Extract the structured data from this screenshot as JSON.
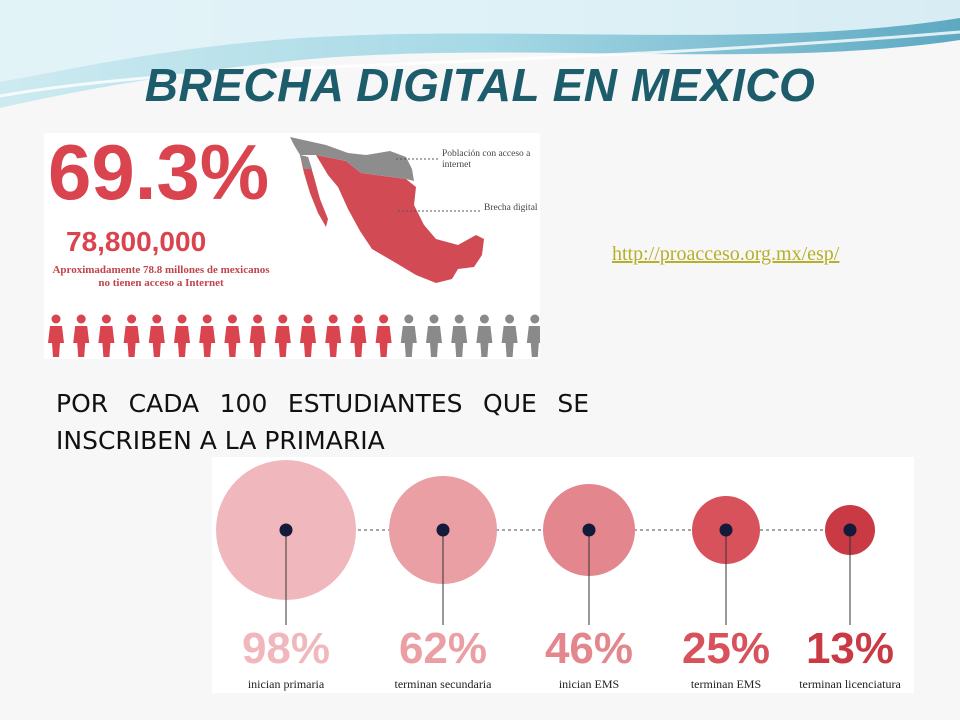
{
  "slide": {
    "title": "BRECHA DIGITAL EN MEXICO",
    "source_link": "http://proacceso.org.mx/esp/",
    "heading": "POR CADA 100 ESTUDIANTES QUE SE INSCRIBEN A LA PRIMARIA"
  },
  "infographic": {
    "percent": "69.3%",
    "count": "78,800,000",
    "caption_line1": "Aproximadamente 78.8 millones de mexicanos",
    "caption_line2": "no tienen acceso a Internet",
    "map_label_access": "Población con acceso a internet",
    "map_label_gap": "Brecha digital",
    "people_total": 20,
    "people_highlighted": 14,
    "colors": {
      "accent": "#d9444e",
      "grey": "#8a8a8a"
    }
  },
  "stages": [
    {
      "pct": "98%",
      "label": "inician primaria",
      "color": "#f0b8bc"
    },
    {
      "pct": "62%",
      "label": "terminan secundaria",
      "color": "#ea9fa5"
    },
    {
      "pct": "46%",
      "label": "inician EMS",
      "color": "#e3868d"
    },
    {
      "pct": "25%",
      "label": "terminan EMS",
      "color": "#d8525c"
    },
    {
      "pct": "13%",
      "label": "terminan licenciatura",
      "color": "#c93a44"
    }
  ]
}
